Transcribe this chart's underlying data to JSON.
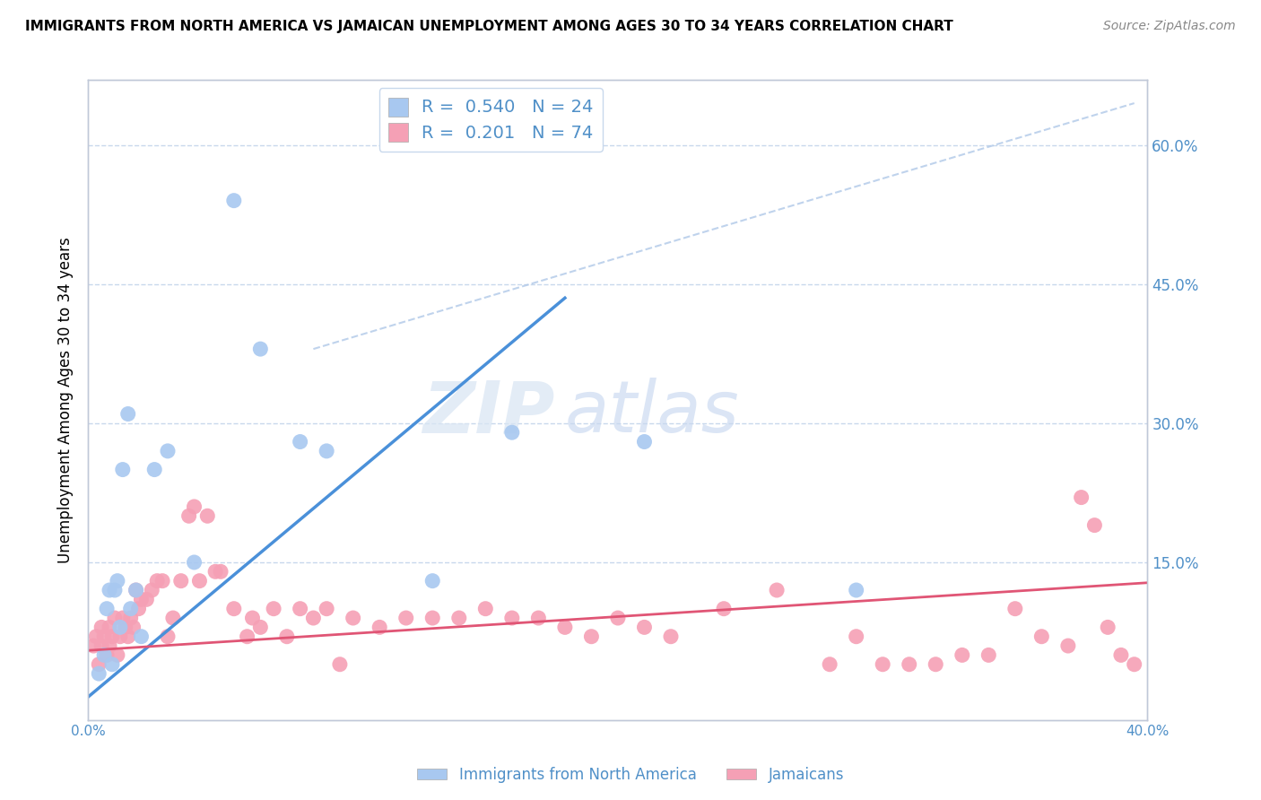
{
  "title": "IMMIGRANTS FROM NORTH AMERICA VS JAMAICAN UNEMPLOYMENT AMONG AGES 30 TO 34 YEARS CORRELATION CHART",
  "source": "Source: ZipAtlas.com",
  "ylabel": "Unemployment Among Ages 30 to 34 years",
  "xlim": [
    0.0,
    0.4
  ],
  "ylim": [
    -0.02,
    0.67
  ],
  "blue_R": 0.54,
  "blue_N": 24,
  "pink_R": 0.201,
  "pink_N": 74,
  "blue_color": "#a8c8f0",
  "pink_color": "#f5a0b5",
  "blue_line_color": "#4a90d9",
  "pink_line_color": "#e05575",
  "dashed_line_color": "#b0c8e8",
  "grid_color": "#c8d8ec",
  "axis_color": "#c0c8d8",
  "text_color": "#5090c8",
  "watermark_zip": "ZIP",
  "watermark_atlas": "atlas",
  "blue_points_x": [
    0.004,
    0.006,
    0.007,
    0.008,
    0.009,
    0.01,
    0.011,
    0.012,
    0.013,
    0.015,
    0.016,
    0.018,
    0.02,
    0.025,
    0.03,
    0.04,
    0.055,
    0.065,
    0.08,
    0.09,
    0.13,
    0.16,
    0.21,
    0.29
  ],
  "blue_points_y": [
    0.03,
    0.05,
    0.1,
    0.12,
    0.04,
    0.12,
    0.13,
    0.08,
    0.25,
    0.31,
    0.1,
    0.12,
    0.07,
    0.25,
    0.27,
    0.15,
    0.54,
    0.38,
    0.28,
    0.27,
    0.13,
    0.29,
    0.28,
    0.12
  ],
  "pink_points_x": [
    0.002,
    0.003,
    0.004,
    0.005,
    0.005,
    0.006,
    0.007,
    0.008,
    0.008,
    0.009,
    0.01,
    0.011,
    0.012,
    0.013,
    0.014,
    0.015,
    0.016,
    0.017,
    0.018,
    0.019,
    0.02,
    0.022,
    0.024,
    0.026,
    0.028,
    0.03,
    0.032,
    0.035,
    0.038,
    0.04,
    0.042,
    0.045,
    0.048,
    0.05,
    0.055,
    0.06,
    0.062,
    0.065,
    0.07,
    0.075,
    0.08,
    0.085,
    0.09,
    0.095,
    0.1,
    0.11,
    0.12,
    0.13,
    0.14,
    0.15,
    0.16,
    0.17,
    0.18,
    0.19,
    0.2,
    0.21,
    0.22,
    0.24,
    0.26,
    0.28,
    0.3,
    0.32,
    0.34,
    0.36,
    0.37,
    0.375,
    0.38,
    0.385,
    0.39,
    0.395,
    0.35,
    0.33,
    0.31,
    0.29
  ],
  "pink_points_y": [
    0.06,
    0.07,
    0.04,
    0.06,
    0.08,
    0.07,
    0.05,
    0.08,
    0.06,
    0.07,
    0.09,
    0.05,
    0.07,
    0.09,
    0.08,
    0.07,
    0.09,
    0.08,
    0.12,
    0.1,
    0.11,
    0.11,
    0.12,
    0.13,
    0.13,
    0.07,
    0.09,
    0.13,
    0.2,
    0.21,
    0.13,
    0.2,
    0.14,
    0.14,
    0.1,
    0.07,
    0.09,
    0.08,
    0.1,
    0.07,
    0.1,
    0.09,
    0.1,
    0.04,
    0.09,
    0.08,
    0.09,
    0.09,
    0.09,
    0.1,
    0.09,
    0.09,
    0.08,
    0.07,
    0.09,
    0.08,
    0.07,
    0.1,
    0.12,
    0.04,
    0.04,
    0.04,
    0.05,
    0.07,
    0.06,
    0.22,
    0.19,
    0.08,
    0.05,
    0.04,
    0.1,
    0.05,
    0.04,
    0.07
  ],
  "blue_line_x": [
    0.0,
    0.18
  ],
  "blue_line_y": [
    0.005,
    0.435
  ],
  "pink_line_x": [
    0.0,
    0.4
  ],
  "pink_line_y": [
    0.055,
    0.128
  ],
  "dash_line_x": [
    0.085,
    0.395
  ],
  "dash_line_y": [
    0.38,
    0.645
  ]
}
